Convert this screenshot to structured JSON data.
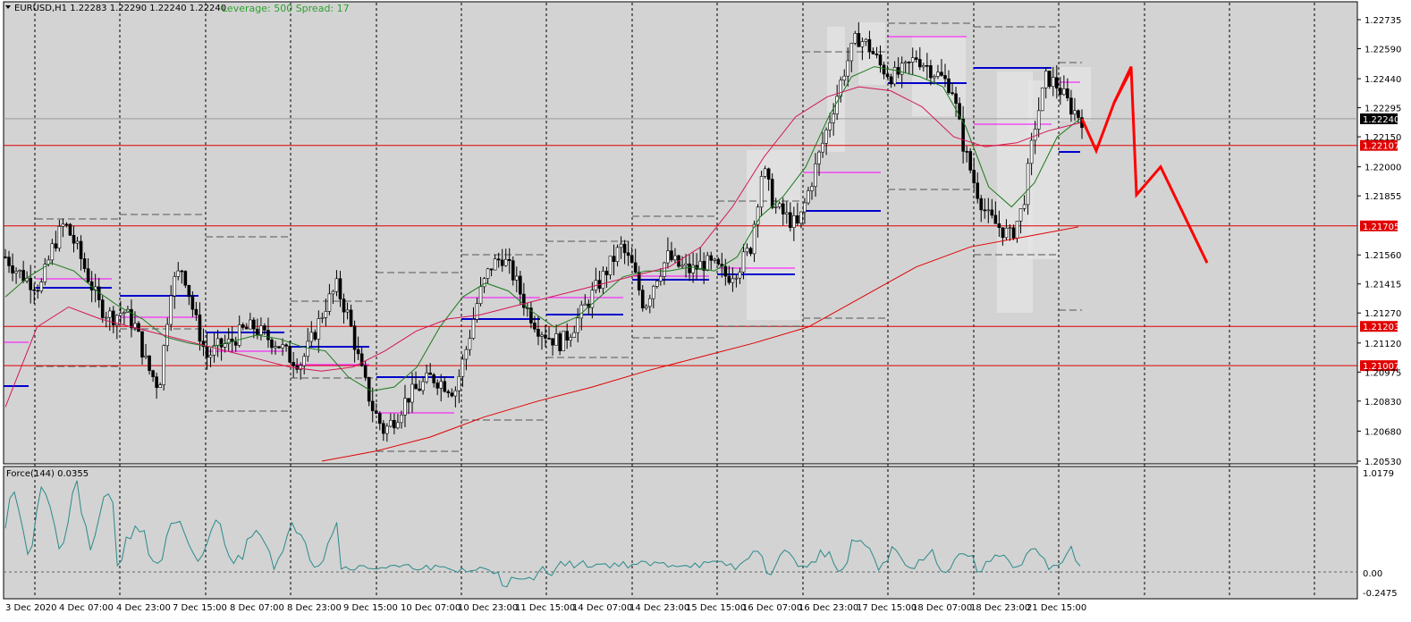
{
  "header": {
    "symbol_info": "EURUSD,H1  1.22283 1.22290 1.22240 1.22240",
    "leverage_info": "Leverage: 500 Spread: 17"
  },
  "indicator": {
    "label": "Force(144) 0.0355"
  },
  "colors": {
    "background": "#d3d3d3",
    "candle": "#000000",
    "support_line": "#e00000",
    "ma_fast": "#1a7a1a",
    "ma_mid": "#d4145a",
    "ma_slow": "#e00000",
    "force_line": "#2a8a8a",
    "projection": "#ff0000",
    "blue_level": "#0000cc",
    "magenta_level": "#ff00ff"
  },
  "chart_data": {
    "type": "candlestick",
    "price_axis_ticks": [
      "1.22735",
      "1.22590",
      "1.22440",
      "1.22295",
      "1.22150",
      "1.22000",
      "1.21855",
      "1.21560",
      "1.21415",
      "1.21270",
      "1.21120",
      "1.20975",
      "1.20830",
      "1.20680",
      "1.20530"
    ],
    "current_price": "1.22240",
    "horizontal_levels": [
      {
        "label": "1.22107",
        "value": 1.22107
      },
      {
        "label": "1.21705",
        "value": 1.21705
      },
      {
        "label": "1.21203",
        "value": 1.21203
      },
      {
        "label": "1.21007",
        "value": 1.21007
      }
    ],
    "time_axis_labels": [
      "3 Dec 2020",
      "4 Dec 07:00",
      "4 Dec 23:00",
      "7 Dec 15:00",
      "8 Dec 07:00",
      "8 Dec 23:00",
      "9 Dec 15:00",
      "10 Dec 07:00",
      "10 Dec 23:00",
      "11 Dec 15:00",
      "14 Dec 07:00",
      "14 Dec 23:00",
      "15 Dec 15:00",
      "16 Dec 07:00",
      "16 Dec 23:00",
      "17 Dec 15:00",
      "18 Dec 07:00",
      "18 Dec 23:00",
      "21 Dec 15:00"
    ],
    "close_path": [
      1.2155,
      1.2148,
      1.2143,
      1.214,
      1.216,
      1.2172,
      1.216,
      1.2145,
      1.213,
      1.2125,
      1.2128,
      1.212,
      1.21,
      1.209,
      1.214,
      1.215,
      1.2125,
      1.2105,
      1.211,
      1.2112,
      1.2118,
      1.212,
      1.2115,
      1.2112,
      1.2105,
      1.2102,
      1.2115,
      1.213,
      1.214,
      1.2125,
      1.21,
      1.208,
      1.2068,
      1.2075,
      1.2085,
      1.209,
      1.2095,
      1.2092,
      1.2088,
      1.211,
      1.2135,
      1.215,
      1.2155,
      1.2145,
      1.213,
      1.212,
      1.2115,
      1.2112,
      1.212,
      1.213,
      1.214,
      1.215,
      1.216,
      1.215,
      1.213,
      1.2145,
      1.2155,
      1.215,
      1.2148,
      1.2152,
      1.215,
      1.2145,
      1.215,
      1.216,
      1.22,
      1.218,
      1.2175,
      1.217,
      1.219,
      1.221,
      1.223,
      1.225,
      1.2265,
      1.226,
      1.225,
      1.2245,
      1.2248,
      1.2255,
      1.225,
      1.2245,
      1.224,
      1.221,
      1.219,
      1.2175,
      1.217,
      1.2165,
      1.218,
      1.222,
      1.2245,
      1.224,
      1.223,
      1.2224
    ],
    "ma_fast": [
      1.2135,
      1.2145,
      1.2152,
      1.2148,
      1.2138,
      1.213,
      1.2124,
      1.2115,
      1.2112,
      1.211,
      1.2113,
      1.2116,
      1.2114,
      1.211,
      1.2108,
      1.2095,
      1.2088,
      1.209,
      1.21,
      1.212,
      1.2135,
      1.2142,
      1.2138,
      1.2128,
      1.212,
      1.2125,
      1.2135,
      1.2145,
      1.2148,
      1.2148,
      1.215,
      1.2148,
      1.2155,
      1.2175,
      1.2185,
      1.22,
      1.2225,
      1.2245,
      1.225,
      1.2248,
      1.2245,
      1.224,
      1.222,
      1.219,
      1.218,
      1.2192,
      1.2215,
      1.2224
    ],
    "ma_mid": [
      1.208,
      1.212,
      1.213,
      1.2124,
      1.212,
      1.2116,
      1.2112,
      1.2108,
      1.2104,
      1.21,
      1.2098,
      1.21,
      1.2108,
      1.2118,
      1.2124,
      1.2126,
      1.213,
      1.2134,
      1.2138,
      1.2142,
      1.2146,
      1.215,
      1.216,
      1.218,
      1.2205,
      1.2225,
      1.2235,
      1.224,
      1.2238,
      1.223,
      1.2215,
      1.221,
      1.2212,
      1.2218,
      1.2222
    ],
    "ma_slow": [
      1.2053,
      1.2058,
      1.2065,
      1.2075,
      1.2083,
      1.209,
      1.2098,
      1.2105,
      1.2112,
      1.212,
      1.2135,
      1.215,
      1.216,
      1.2165,
      1.217
    ],
    "projection": [
      [
        1.2224,
        0
      ],
      [
        1.2208,
        1
      ],
      [
        1.2232,
        2
      ],
      [
        1.225,
        3
      ],
      [
        1.2186,
        4
      ],
      [
        1.22,
        5
      ],
      [
        1.2152,
        6
      ]
    ]
  }
}
